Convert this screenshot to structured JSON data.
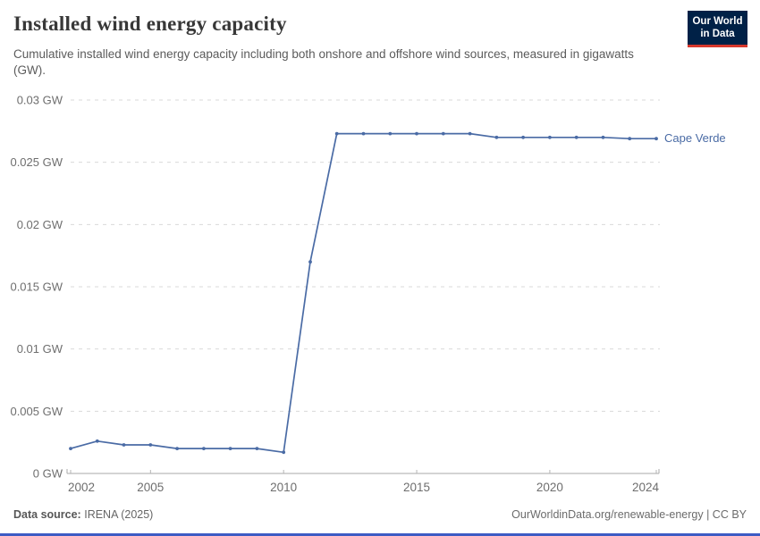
{
  "header": {
    "title": "Installed wind energy capacity",
    "subtitle": "Cumulative installed wind energy capacity including both onshore and offshore wind sources, measured in gigawatts (GW).",
    "logo": {
      "line1": "Our World",
      "line2": "in Data",
      "bg": "#002147",
      "accent": "#d7382d"
    }
  },
  "chart_data": {
    "type": "line",
    "title": "Installed wind energy capacity",
    "unit": "GW",
    "xlabel": "",
    "ylabel": "",
    "xlim": [
      2002,
      2024
    ],
    "ylim": [
      0,
      0.03
    ],
    "grid": "horizontal-dashed",
    "legend_position": "end-of-line-label",
    "x": [
      2002,
      2003,
      2004,
      2005,
      2006,
      2007,
      2008,
      2009,
      2010,
      2011,
      2012,
      2013,
      2014,
      2015,
      2016,
      2017,
      2018,
      2019,
      2020,
      2021,
      2022,
      2023,
      2024
    ],
    "series": [
      {
        "name": "Cape Verde",
        "color": "#4a6ba5",
        "values": [
          0.002,
          0.0026,
          0.0023,
          0.0023,
          0.002,
          0.002,
          0.002,
          0.002,
          0.0017,
          0.017,
          0.0273,
          0.0273,
          0.0273,
          0.0273,
          0.0273,
          0.0273,
          0.027,
          0.027,
          0.027,
          0.027,
          0.027,
          0.0269,
          0.0269
        ]
      }
    ],
    "xticks": [
      2002,
      2005,
      2010,
      2015,
      2020,
      2024
    ],
    "xtick_labels": [
      "2002",
      "2005",
      "2010",
      "2015",
      "2020",
      "2024"
    ],
    "yticks": [
      0,
      0.005,
      0.01,
      0.015,
      0.02,
      0.025,
      0.03
    ],
    "ytick_labels": [
      "0 GW",
      "0.005 GW",
      "0.01 GW",
      "0.015 GW",
      "0.02 GW",
      "0.025 GW",
      "0.03 GW"
    ]
  },
  "footer": {
    "source_label": "Data source:",
    "source_value": "IRENA (2025)",
    "right_text": "OurWorldinData.org/renewable-energy | CC BY"
  }
}
